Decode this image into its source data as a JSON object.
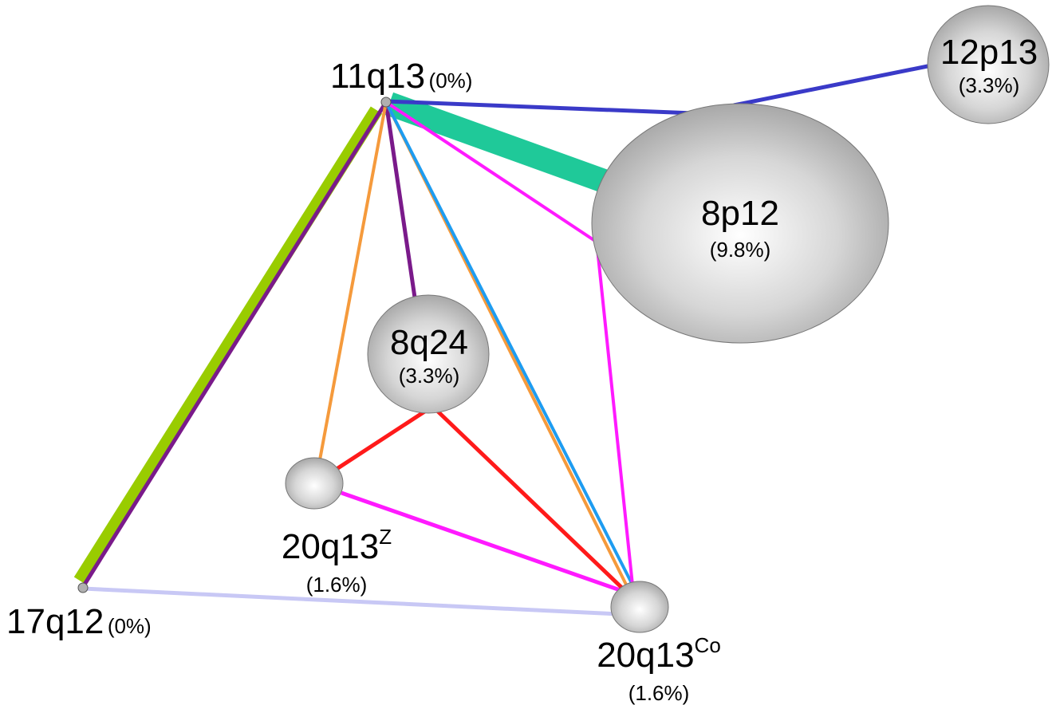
{
  "nodes": [
    {
      "id": "11q13",
      "name": "11q13",
      "percent": "(0%)",
      "sup": ""
    },
    {
      "id": "12p13",
      "name": "12p13",
      "percent": "(3.3%)",
      "sup": ""
    },
    {
      "id": "8p12",
      "name": "8p12",
      "percent": "(9.8%)",
      "sup": ""
    },
    {
      "id": "8q24",
      "name": "8q24",
      "percent": "(3.3%)",
      "sup": ""
    },
    {
      "id": "20q13z",
      "name": "20q13",
      "percent": "(1.6%)",
      "sup": "Z"
    },
    {
      "id": "17q12",
      "name": "17q12",
      "percent": "(0%)",
      "sup": ""
    },
    {
      "id": "20q13co",
      "name": "20q13",
      "percent": "(1.6%)",
      "sup": "Co"
    }
  ],
  "edge_colors": {
    "blue": "#3a3ac8",
    "teal": "#1fc999",
    "green": "#99cc00",
    "purple": "#7a1a8a",
    "orange": "#f59a3c",
    "skyblue": "#1e9cf0",
    "magenta": "#ff1aff",
    "red": "#ff1a1a",
    "lavender": "#c8c8f5"
  }
}
